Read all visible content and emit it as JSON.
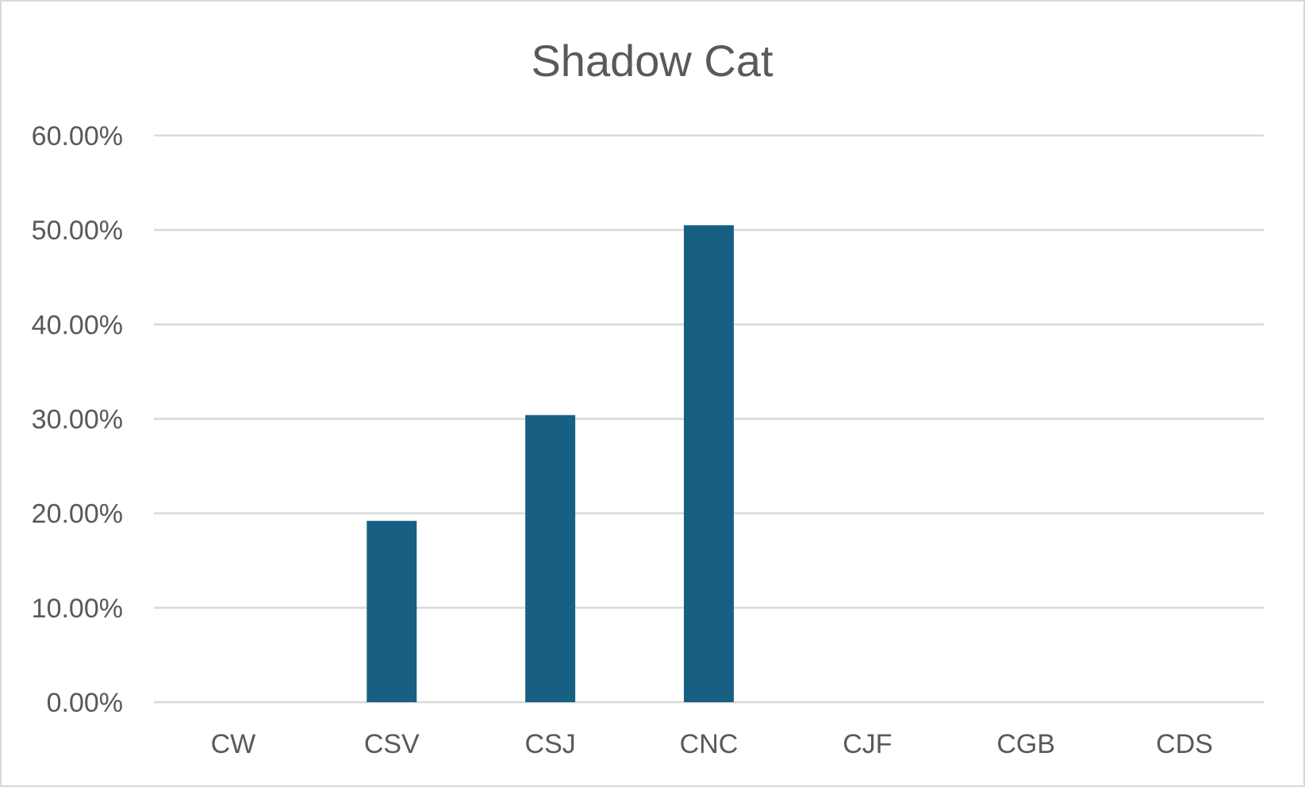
{
  "chart_data": {
    "type": "bar",
    "title": "Shadow Cat",
    "xlabel": "",
    "ylabel": "",
    "categories": [
      "CW",
      "CSV",
      "CSJ",
      "CNC",
      "CJF",
      "CGB",
      "CDS"
    ],
    "series": [
      {
        "values": [
          0,
          0.192,
          0.304,
          0.505,
          0,
          0,
          0
        ],
        "color": "#176083"
      }
    ],
    "ylim": [
      0,
      0.6
    ],
    "yticks": [
      0,
      0.1,
      0.2,
      0.3,
      0.4,
      0.5,
      0.6
    ],
    "ytick_labels": [
      "0.00%",
      "10.00%",
      "20.00%",
      "30.00%",
      "40.00%",
      "50.00%",
      "60.00%"
    ],
    "grid": true,
    "legend": "none"
  }
}
